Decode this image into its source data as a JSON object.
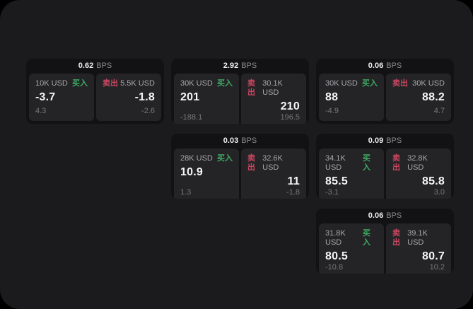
{
  "page": {
    "background": "#000000",
    "surface": "#1b1b1d"
  },
  "colors": {
    "buy_green": "#3fa963",
    "sell_red": "#cb4760",
    "card_bg": "#121214",
    "panel_bg": "#242427"
  },
  "labels": {
    "bps_unit": "BPS",
    "buy": "买入",
    "sell": "卖出"
  },
  "cards": [
    {
      "bps": "0.62",
      "buy": {
        "amount": "10K USD",
        "value": "-3.7",
        "delta": "4.3"
      },
      "sell": {
        "amount": "5.5K USD",
        "value": "-1.8",
        "delta": "-2.6"
      }
    },
    {
      "bps": "2.92",
      "buy": {
        "amount": "30K USD",
        "value": "201",
        "delta": "-188.1"
      },
      "sell": {
        "amount": "30.1K USD",
        "value": "210",
        "delta": "196.5"
      }
    },
    {
      "bps": "0.06",
      "buy": {
        "amount": "30K USD",
        "value": "88",
        "delta": "-4.9"
      },
      "sell": {
        "amount": "30K USD",
        "value": "88.2",
        "delta": "4.7"
      }
    },
    {
      "bps": "0.03",
      "buy": {
        "amount": "28K USD",
        "value": "10.9",
        "delta": "1.3"
      },
      "sell": {
        "amount": "32.6K USD",
        "value": "11",
        "delta": "-1.8"
      }
    },
    {
      "bps": "0.09",
      "buy": {
        "amount": "34.1K USD",
        "value": "85.5",
        "delta": "-3.1"
      },
      "sell": {
        "amount": "32.8K USD",
        "value": "85.8",
        "delta": "3.0"
      }
    },
    {
      "bps": "0.06",
      "buy": {
        "amount": "31.8K USD",
        "value": "80.5",
        "delta": "-10.8"
      },
      "sell": {
        "amount": "39.1K USD",
        "value": "80.7",
        "delta": "10.2"
      }
    }
  ]
}
